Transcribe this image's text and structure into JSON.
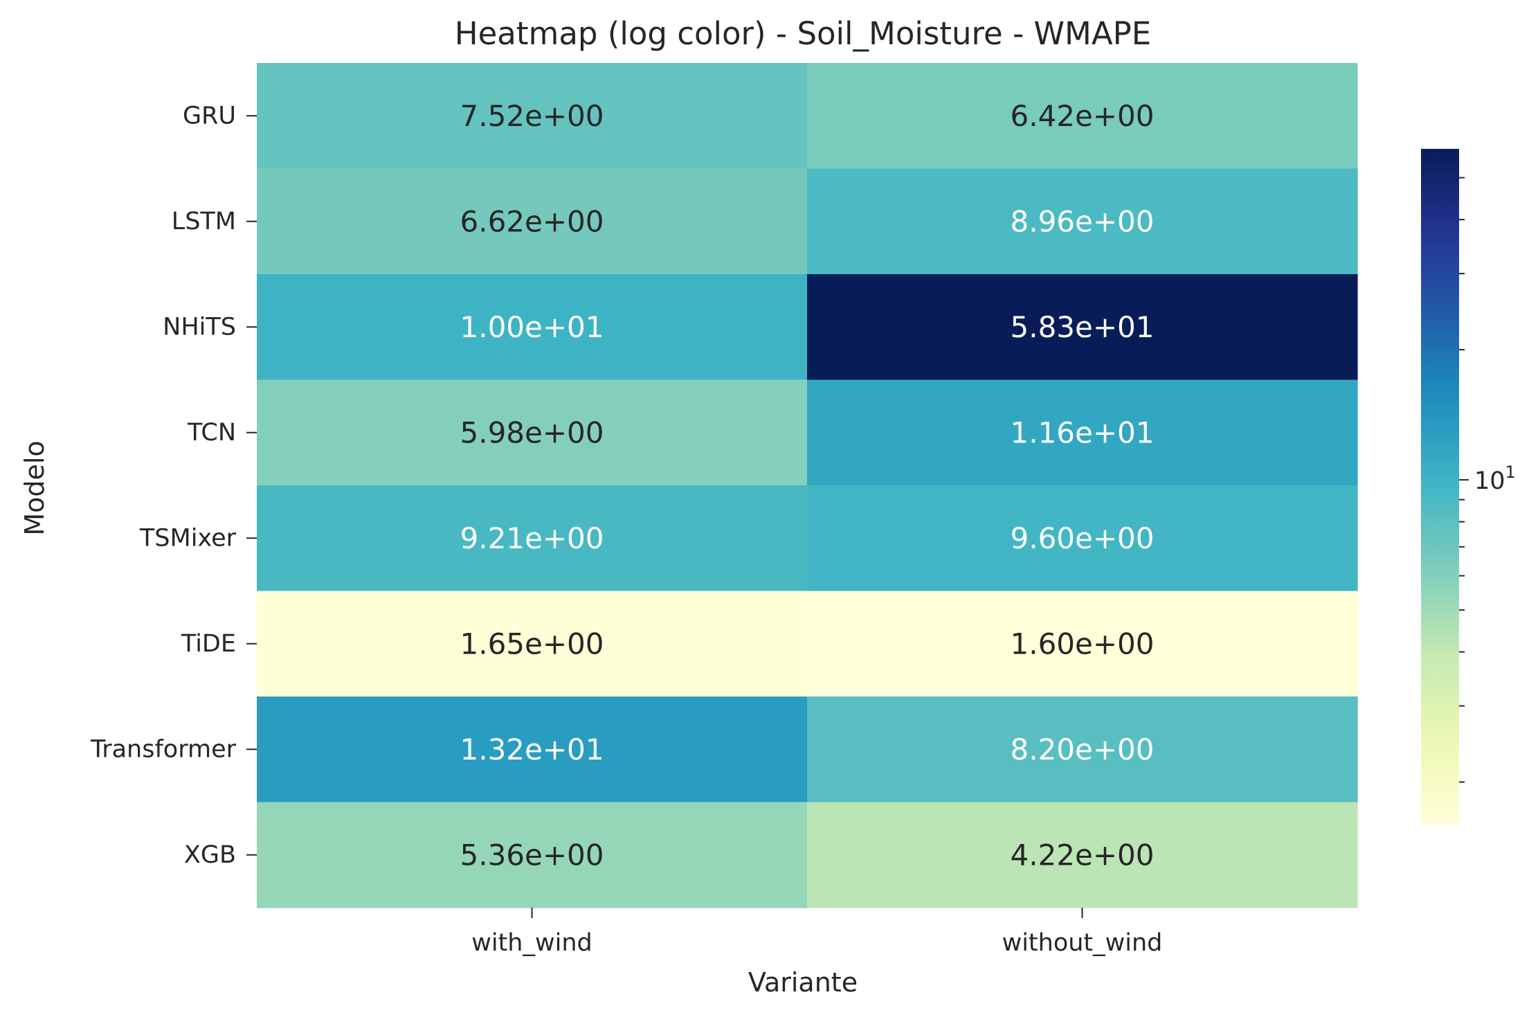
{
  "chart_data": {
    "type": "heatmap",
    "title": "Heatmap (log color) - Soil_Moisture - WMAPE",
    "xlabel": "Variante",
    "ylabel": "Modelo",
    "columns": [
      "with_wind",
      "without_wind"
    ],
    "rows": [
      "GRU",
      "LSTM",
      "NHiTS",
      "TCN",
      "TSMixer",
      "TiDE",
      "Transformer",
      "XGB"
    ],
    "values": [
      [
        7.52,
        6.42
      ],
      [
        6.62,
        8.96
      ],
      [
        10.0,
        58.3
      ],
      [
        5.98,
        11.6
      ],
      [
        9.21,
        9.6
      ],
      [
        1.65,
        1.6
      ],
      [
        13.2,
        8.2
      ],
      [
        5.36,
        4.22
      ]
    ],
    "cell_labels": [
      [
        "7.52e+00",
        "6.42e+00"
      ],
      [
        "6.62e+00",
        "8.96e+00"
      ],
      [
        "1.00e+01",
        "5.83e+01"
      ],
      [
        "5.98e+00",
        "1.16e+01"
      ],
      [
        "9.21e+00",
        "9.60e+00"
      ],
      [
        "1.65e+00",
        "1.60e+00"
      ],
      [
        "1.32e+01",
        "8.20e+00"
      ],
      [
        "5.36e+00",
        "4.22e+00"
      ]
    ],
    "colorscale": "YlGnBu",
    "color_scale_type": "log",
    "color_range": [
      1.6,
      58.3
    ],
    "colorbar_major_tick": {
      "base": "10",
      "exponent": "1",
      "value": 10
    }
  }
}
